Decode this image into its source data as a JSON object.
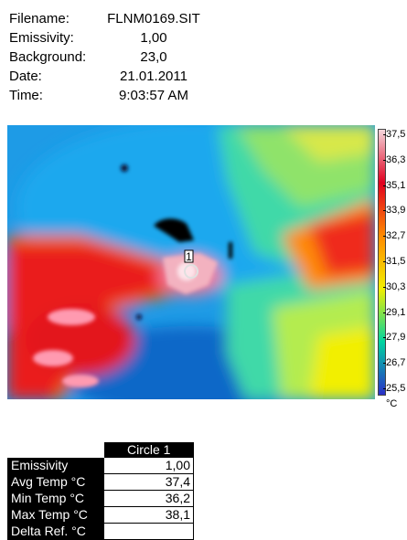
{
  "meta": {
    "filename_label": "Filename:",
    "filename": "FLNM0169.SIT",
    "emissivity_label": "Emissivity:",
    "emissivity": "1,00",
    "background_label": "Background:",
    "background": "23,0",
    "date_label": "Date:",
    "date": "21.01.2011",
    "time_label": "Time:",
    "time": "9:03:57 AM"
  },
  "marker": {
    "number": "1"
  },
  "colors": {
    "scale_top": "#f4d6dc",
    "scale_hot": "#e0001f",
    "scale_warm": "#ff8a00",
    "scale_mid": "#f2ef00",
    "scale_cool": "#00d4a0",
    "scale_cold": "#2a2fc8"
  },
  "scale": {
    "ticks": [
      "37,5",
      "36,3",
      "35,1",
      "33,9",
      "32,7",
      "31,5",
      "30,3",
      "29,1",
      "27,9",
      "26,7",
      "25,5"
    ],
    "unit": "°C"
  },
  "results": {
    "column_header": "Circle 1",
    "rows": [
      {
        "label": "Emissivity",
        "value": "1,00"
      },
      {
        "label": "Avg Temp °C",
        "value": "37,4"
      },
      {
        "label": "Min Temp °C",
        "value": "36,2"
      },
      {
        "label": "Max Temp °C",
        "value": "38,1"
      },
      {
        "label": "Delta Ref. °C",
        "value": ""
      }
    ]
  }
}
